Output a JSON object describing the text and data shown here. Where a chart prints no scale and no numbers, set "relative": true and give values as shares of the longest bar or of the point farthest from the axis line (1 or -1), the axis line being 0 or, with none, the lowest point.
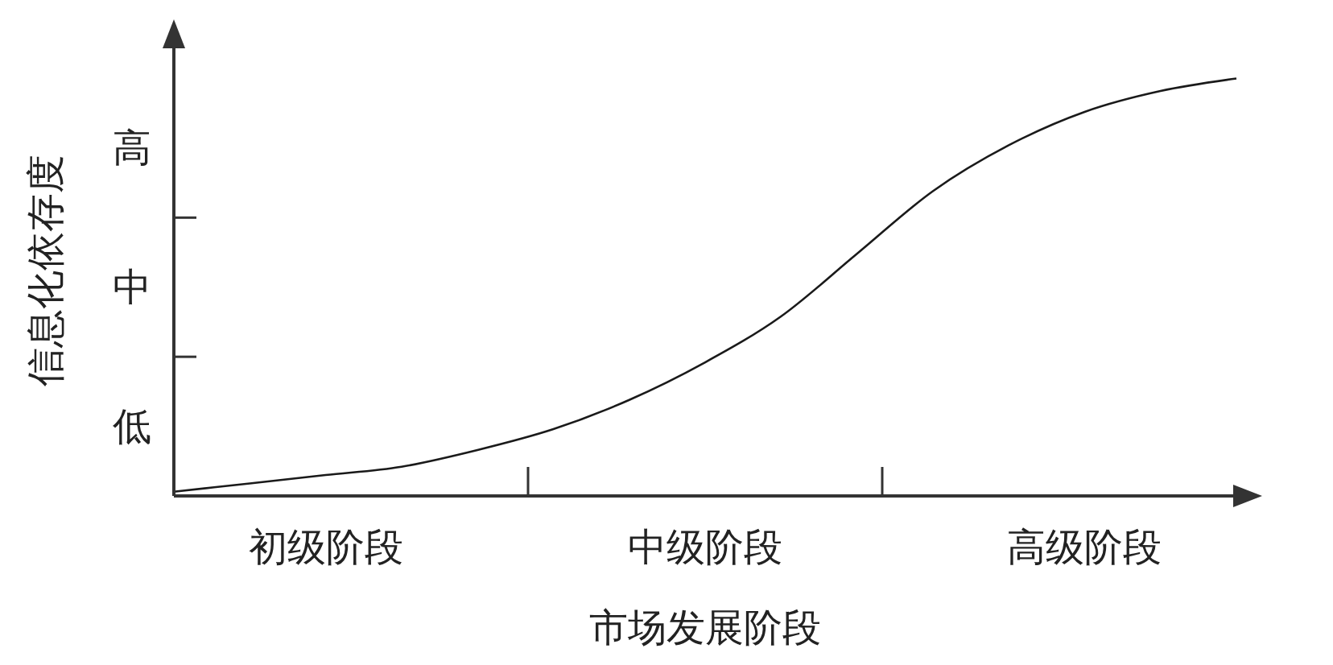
{
  "chart_data": {
    "type": "line",
    "xlabel": "市场发展阶段",
    "ylabel": "信息化依存度",
    "relative": true,
    "categories": [
      null,
      null,
      "初级阶段",
      null,
      null,
      null,
      null,
      "中级阶段",
      null,
      null,
      null,
      null,
      "高级阶段",
      null,
      null
    ],
    "annotations": [
      "低",
      "中",
      "高"
    ],
    "marker": "none",
    "line_style": "solid",
    "series": [
      {
        "color": "#1a1a1a",
        "values": [
          0.01,
          0.03,
          0.05,
          0.07,
          0.11,
          0.16,
          0.23,
          0.32,
          0.43,
          0.58,
          0.73,
          0.84,
          0.92,
          0.97,
          1
        ]
      }
    ]
  }
}
